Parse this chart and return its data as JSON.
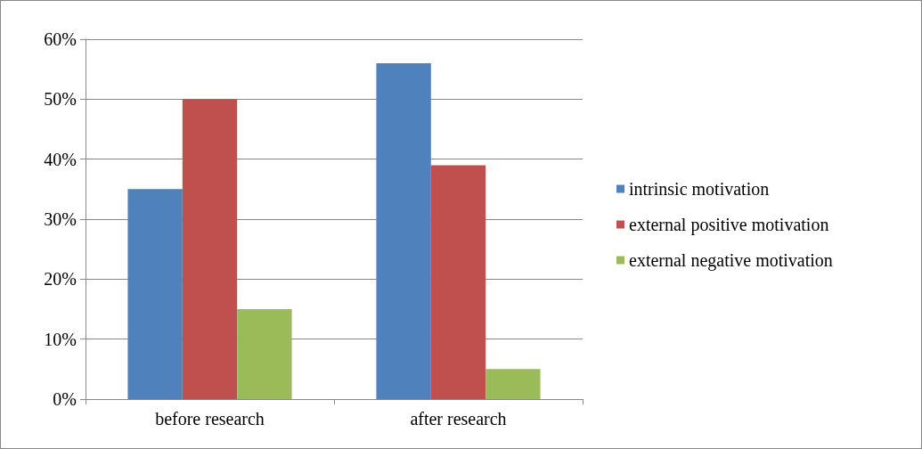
{
  "chart_data": {
    "type": "bar",
    "categories": [
      "before research",
      "after research"
    ],
    "series": [
      {
        "name": "intrinsic motivation",
        "color": "#4f81bd",
        "values": [
          35,
          56
        ]
      },
      {
        "name": "external positive motivation",
        "color": "#c0504d",
        "values": [
          50,
          39
        ]
      },
      {
        "name": "external negative motivation",
        "color": "#9bbb59",
        "values": [
          15,
          5
        ]
      }
    ],
    "ylim": [
      0,
      60
    ],
    "yticks": [
      {
        "value": 0,
        "label": "0%"
      },
      {
        "value": 10,
        "label": "10%"
      },
      {
        "value": 20,
        "label": "20%"
      },
      {
        "value": 30,
        "label": "30%"
      },
      {
        "value": 40,
        "label": "40%"
      },
      {
        "value": 50,
        "label": "50%"
      },
      {
        "value": 60,
        "label": "60%"
      }
    ],
    "grid": "y",
    "legend": "right"
  }
}
